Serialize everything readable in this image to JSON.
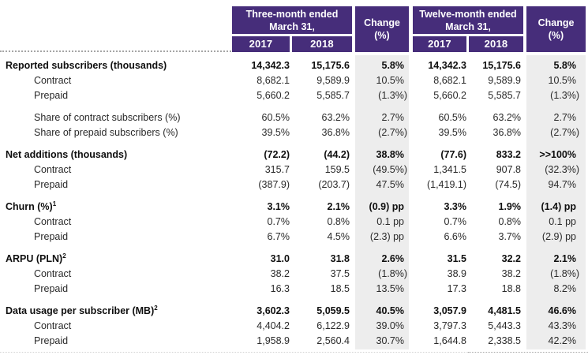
{
  "header": {
    "three_month_title": "Three-month ended March 31,",
    "twelve_month_title": "Twelve-month ended March 31,",
    "change_label": "Change",
    "change_unit": "(%)",
    "years": [
      "2017",
      "2018"
    ]
  },
  "colors": {
    "header_purple": "#462d7a",
    "change_band": "#ededed"
  },
  "sections": [
    {
      "rows": [
        {
          "label": "Reported subscribers (thousands)",
          "sup": "",
          "bold": true,
          "indent": false,
          "values": [
            "14,342.3",
            "15,175.6",
            "5.8%",
            "14,342.3",
            "15,175.6",
            "5.8%"
          ]
        },
        {
          "label": "Contract",
          "sup": "",
          "bold": false,
          "indent": true,
          "values": [
            "8,682.1",
            "9,589.9",
            "10.5%",
            "8,682.1",
            "9,589.9",
            "10.5%"
          ]
        },
        {
          "label": "Prepaid",
          "sup": "",
          "bold": false,
          "indent": true,
          "values": [
            "5,660.2",
            "5,585.7",
            "(1.3%)",
            "5,660.2",
            "5,585.7",
            "(1.3%)"
          ]
        }
      ]
    },
    {
      "rows": [
        {
          "label": "Share of contract subscribers (%)",
          "sup": "",
          "bold": false,
          "indent": true,
          "values": [
            "60.5%",
            "63.2%",
            "2.7%",
            "60.5%",
            "63.2%",
            "2.7%"
          ]
        },
        {
          "label": "Share of prepaid subscribers (%)",
          "sup": "",
          "bold": false,
          "indent": true,
          "values": [
            "39.5%",
            "36.8%",
            "(2.7%)",
            "39.5%",
            "36.8%",
            "(2.7%)"
          ]
        }
      ]
    },
    {
      "rows": [
        {
          "label": "Net additions (thousands)",
          "sup": "",
          "bold": true,
          "indent": false,
          "values": [
            "(72.2)",
            "(44.2)",
            "38.8%",
            "(77.6)",
            "833.2",
            ">>100%"
          ]
        },
        {
          "label": "Contract",
          "sup": "",
          "bold": false,
          "indent": true,
          "values": [
            "315.7",
            "159.5",
            "(49.5%)",
            "1,341.5",
            "907.8",
            "(32.3%)"
          ]
        },
        {
          "label": "Prepaid",
          "sup": "",
          "bold": false,
          "indent": true,
          "values": [
            "(387.9)",
            "(203.7)",
            "47.5%",
            "(1,419.1)",
            "(74.5)",
            "94.7%"
          ]
        }
      ]
    },
    {
      "rows": [
        {
          "label": "Churn (%)",
          "sup": "1",
          "bold": true,
          "indent": false,
          "values": [
            "3.1%",
            "2.1%",
            "(0.9) pp",
            "3.3%",
            "1.9%",
            "(1.4) pp"
          ]
        },
        {
          "label": "Contract",
          "sup": "",
          "bold": false,
          "indent": true,
          "values": [
            "0.7%",
            "0.8%",
            "0.1 pp",
            "0.7%",
            "0.8%",
            "0.1 pp"
          ]
        },
        {
          "label": "Prepaid",
          "sup": "",
          "bold": false,
          "indent": true,
          "values": [
            "6.7%",
            "4.5%",
            "(2.3) pp",
            "6.6%",
            "3.7%",
            "(2.9) pp"
          ]
        }
      ]
    },
    {
      "rows": [
        {
          "label": "ARPU (PLN)",
          "sup": "2",
          "bold": true,
          "indent": false,
          "values": [
            "31.0",
            "31.8",
            "2.6%",
            "31.5",
            "32.2",
            "2.1%"
          ]
        },
        {
          "label": "Contract",
          "sup": "",
          "bold": false,
          "indent": true,
          "values": [
            "38.2",
            "37.5",
            "(1.8%)",
            "38.9",
            "38.2",
            "(1.8%)"
          ]
        },
        {
          "label": "Prepaid",
          "sup": "",
          "bold": false,
          "indent": true,
          "values": [
            "16.3",
            "18.5",
            "13.5%",
            "17.3",
            "18.8",
            "8.2%"
          ]
        }
      ]
    },
    {
      "rows": [
        {
          "label": "Data usage per subscriber (MB)",
          "sup": "2",
          "bold": true,
          "indent": false,
          "values": [
            "3,602.3",
            "5,059.5",
            "40.5%",
            "3,057.9",
            "4,481.5",
            "46.6%"
          ]
        },
        {
          "label": "Contract",
          "sup": "",
          "bold": false,
          "indent": true,
          "values": [
            "4,404.2",
            "6,122.9",
            "39.0%",
            "3,797.3",
            "5,443.3",
            "43.3%"
          ]
        },
        {
          "label": "Prepaid",
          "sup": "",
          "bold": false,
          "indent": true,
          "values": [
            "1,958.9",
            "2,560.4",
            "30.7%",
            "1,644.8",
            "2,338.5",
            "42.2%"
          ]
        }
      ]
    }
  ]
}
